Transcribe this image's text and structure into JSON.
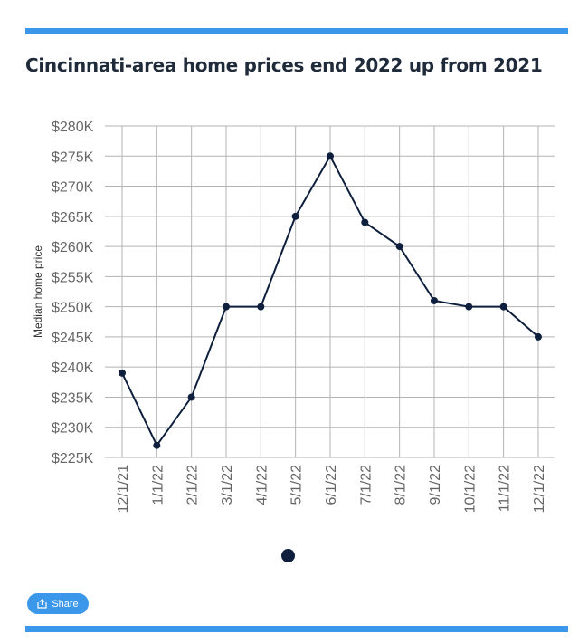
{
  "colors": {
    "accent": "#3a97ea",
    "series": "#0d1f3c",
    "grid": "#b3b3b3",
    "axis_text": "#666666",
    "title": "#1f2a3a"
  },
  "title": "Cincinnati-area home prices end 2022 up from 2021",
  "share": {
    "label": "Share",
    "icon": "share-icon"
  },
  "chart_data": {
    "type": "line",
    "title": "Cincinnati-area home prices end 2022 up from 2021",
    "xlabel": "",
    "ylabel": "Median home price",
    "x": [
      "12/1/21",
      "1/1/22",
      "2/1/22",
      "3/1/22",
      "4/1/22",
      "5/1/22",
      "6/1/22",
      "7/1/22",
      "8/1/22",
      "9/1/22",
      "10/1/22",
      "11/1/22",
      "12/1/22"
    ],
    "series": [
      {
        "values": [
          239000,
          227000,
          235000,
          250000,
          250000,
          265000,
          275000,
          264000,
          260000,
          251000,
          250000,
          250000,
          245000
        ]
      }
    ],
    "ylim": [
      225000,
      280000
    ],
    "yticks": [
      280000,
      275000,
      270000,
      265000,
      260000,
      255000,
      250000,
      245000,
      240000,
      235000,
      230000,
      225000
    ],
    "ytick_labels": [
      "$280K",
      "$275K",
      "$270K",
      "$265K",
      "$260K",
      "$255K",
      "$250K",
      "$245K",
      "$240K",
      "$235K",
      "$230K",
      "$225K"
    ],
    "grid": true,
    "legend": "bottom-center"
  }
}
